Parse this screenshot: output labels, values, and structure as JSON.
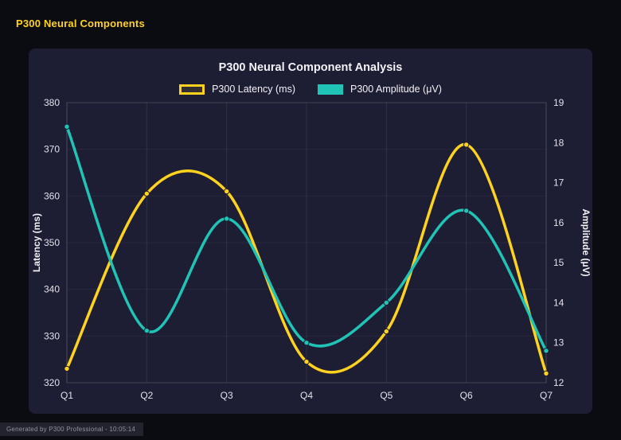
{
  "page": {
    "title": "P300 Neural Components"
  },
  "footer": {
    "text": "Generated by P300 Professional - 10:05:14"
  },
  "chart_data": {
    "type": "line",
    "title": "P300 Neural Component Analysis",
    "categories": [
      "Q1",
      "Q2",
      "Q3",
      "Q4",
      "Q5",
      "Q6",
      "Q7"
    ],
    "series": [
      {
        "name": "P300 Latency (ms)",
        "axis": "left",
        "color": "#ffd21e",
        "legend_style": "outline",
        "values": [
          323,
          360.5,
          361,
          324.5,
          331,
          371,
          322
        ]
      },
      {
        "name": "P300 Amplitude (μV)",
        "axis": "right",
        "color": "#20c4b6",
        "legend_style": "solid",
        "values": [
          18.4,
          13.3,
          16.1,
          13.0,
          14.0,
          16.3,
          12.8
        ]
      }
    ],
    "left_axis": {
      "label": "Latency (ms)",
      "min": 320,
      "max": 380,
      "step": 10
    },
    "right_axis": {
      "label": "Amplitude (μV)",
      "min": 12,
      "max": 19,
      "step": 1
    },
    "grid": true,
    "legend_position": "top",
    "curve": "smooth"
  }
}
